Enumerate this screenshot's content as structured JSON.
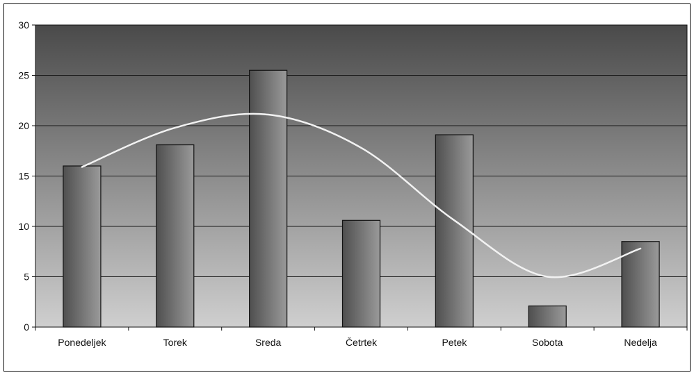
{
  "chart_data": {
    "type": "bar",
    "title": "",
    "xlabel": "",
    "ylabel": "",
    "ylim": [
      0,
      30
    ],
    "yticks": [
      0,
      5,
      10,
      15,
      20,
      25,
      30
    ],
    "grid": true,
    "legend": "none",
    "categories": [
      "Ponedeljek",
      "Torek",
      "Sreda",
      "Četrtek",
      "Petek",
      "Sobota",
      "Nedelja"
    ],
    "series": [
      {
        "type": "bar",
        "values": [
          16.0,
          18.1,
          25.5,
          10.6,
          19.1,
          2.1,
          8.5
        ]
      },
      {
        "type": "line",
        "smooth": true,
        "values": [
          15.9,
          19.8,
          21.1,
          17.8,
          10.6,
          5.0,
          7.8
        ]
      }
    ],
    "colors": {
      "plot_top": "#4a4a4a",
      "plot_bottom": "#cfcfcf",
      "bar_dark": "#4f4f4f",
      "bar_light": "#9a9a9a",
      "trend_line": "#f2f2f2",
      "grid": "#1a1a1a"
    }
  }
}
